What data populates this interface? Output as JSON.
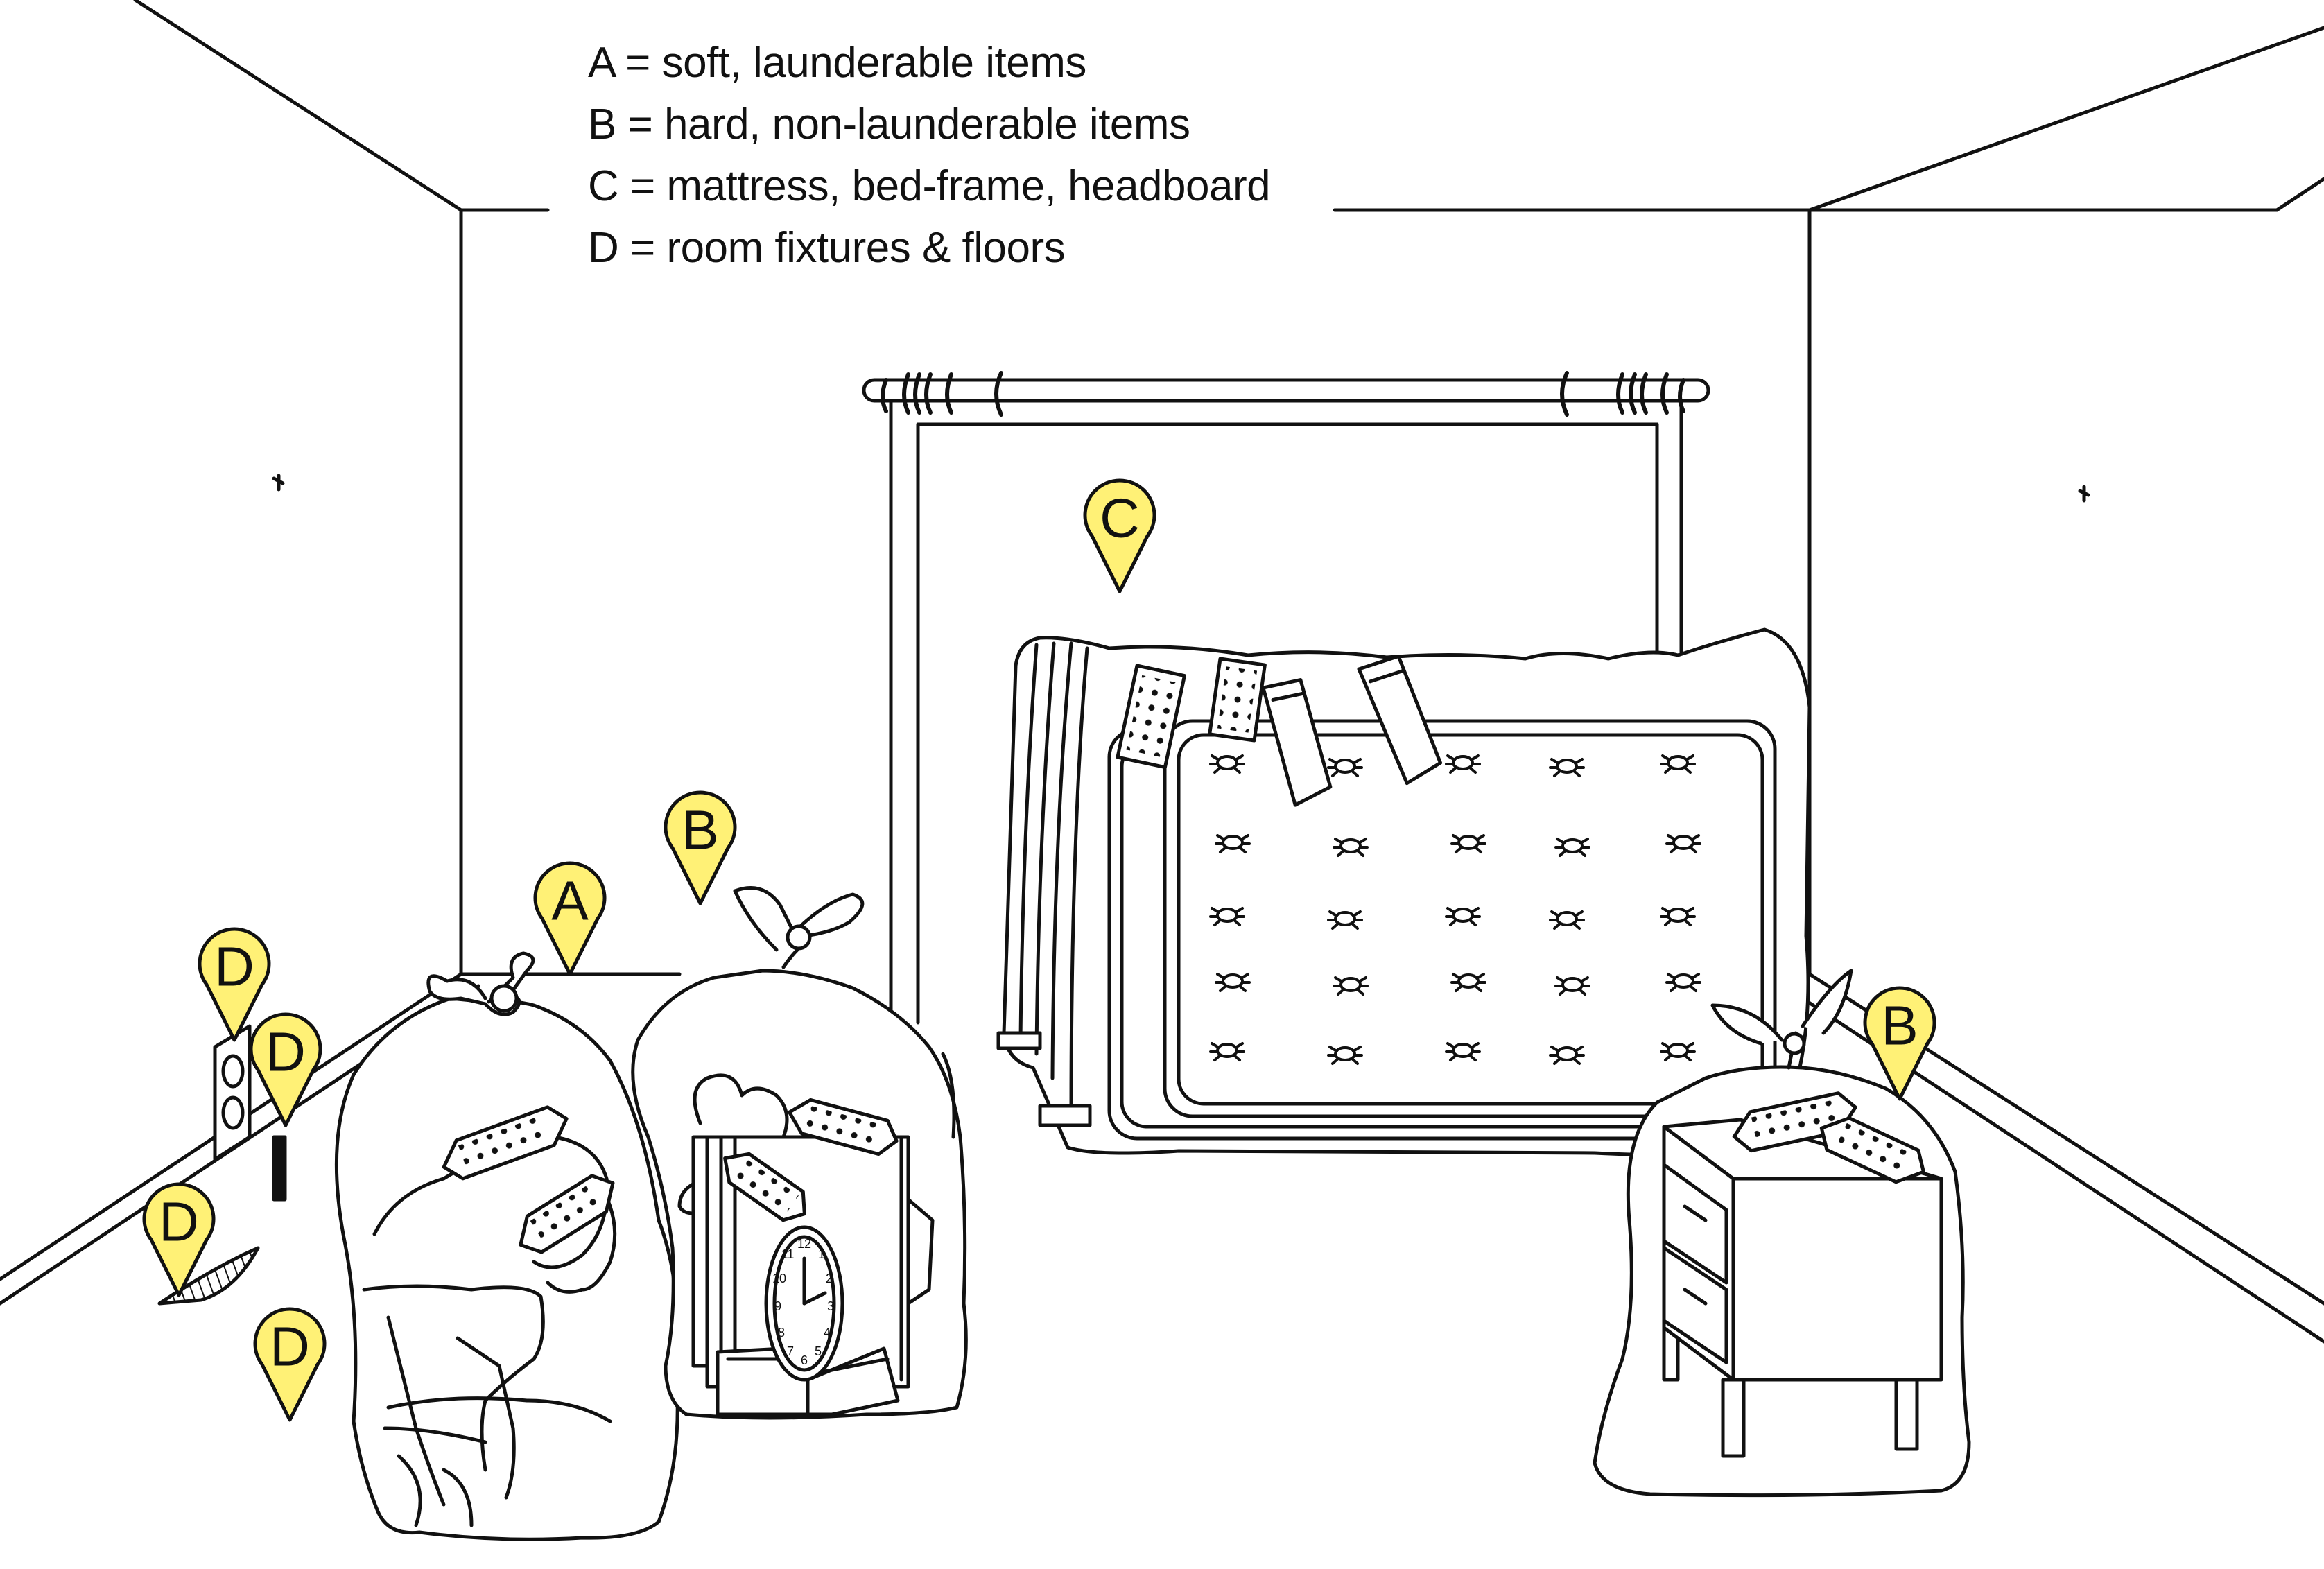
{
  "legend": [
    {
      "key": "A",
      "text": "A = soft, launderable items"
    },
    {
      "key": "B",
      "text": "B = hard, non-launderable items"
    },
    {
      "key": "C",
      "text": "C = mattress, bed-frame, headboard"
    },
    {
      "key": "D",
      "text": "D = room fixtures & floors"
    }
  ],
  "markers": {
    "clothes_bag": "A",
    "items_bag": "B",
    "mattress": "C",
    "nightstand_bag": "B",
    "outlet": "D",
    "cord": "D",
    "baseboard": "D",
    "floor": "D"
  },
  "colors": {
    "marker_fill": "#FFF176",
    "line": "#111111",
    "background": "#FFFFFF"
  }
}
